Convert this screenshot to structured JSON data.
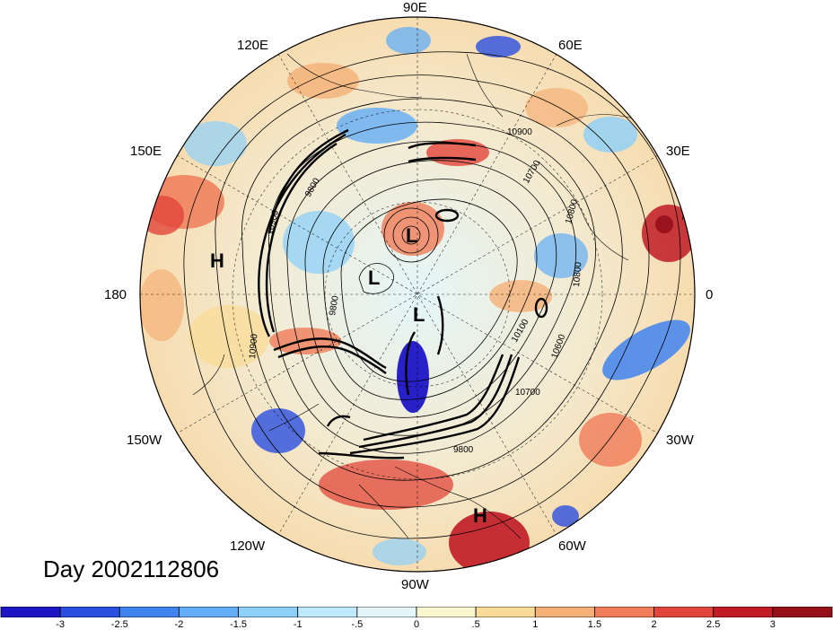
{
  "day_label": "Day 2002112806",
  "longitude_labels": [
    "90E",
    "60E",
    "30E",
    "0",
    "30W",
    "60W",
    "90W",
    "120W",
    "150W",
    "180",
    "150E",
    "120E"
  ],
  "pressure_centers": [
    {
      "label": "L"
    },
    {
      "label": "L"
    },
    {
      "label": "L"
    },
    {
      "label": "H"
    },
    {
      "label": "H"
    }
  ],
  "contour_labels": [
    "10900",
    "10700",
    "10800",
    "10800",
    "10600",
    "10100",
    "10700",
    "9800",
    "9800",
    "10900",
    "10900",
    "9800"
  ],
  "colorbar": {
    "ticks": [
      "-3",
      "-2.5",
      "-2",
      "-1.5",
      "-1",
      "-.5",
      "0",
      ".5",
      "1",
      "1.5",
      "2",
      "2.5",
      "3"
    ],
    "colors": [
      "#1d14c6",
      "#2a4fe0",
      "#3f84ee",
      "#62adf5",
      "#8dd0fa",
      "#bfe8fb",
      "#e4f6f9",
      "#fbf5cf",
      "#f9dc99",
      "#f5b077",
      "#f07c59",
      "#e2453a",
      "#c01b26",
      "#961019"
    ]
  }
}
